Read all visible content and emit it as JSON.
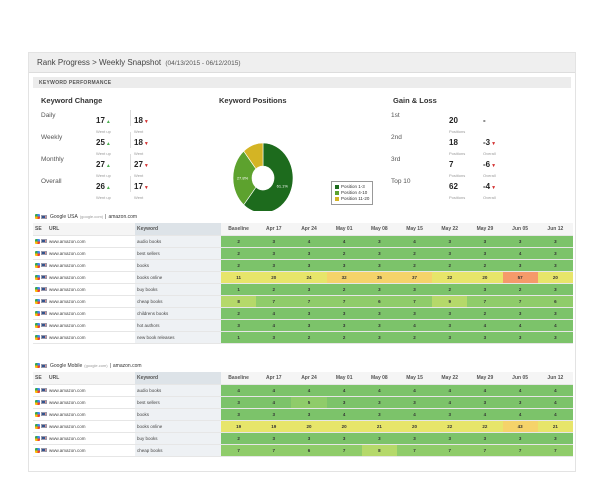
{
  "header": {
    "title": "Rank Progress > Weekly Snapshot",
    "dates": "(04/13/2015 - 06/12/2015)"
  },
  "section_label": "KEYWORD PERFORMANCE",
  "keyword_change": {
    "title": "Keyword Change",
    "rows": [
      {
        "label": "Daily",
        "up": "17",
        "up_sub": "Went up",
        "down": "18",
        "down_sub": "Went"
      },
      {
        "label": "Weekly",
        "up": "25",
        "up_sub": "Went up",
        "down": "18",
        "down_sub": "Went"
      },
      {
        "label": "Monthly",
        "up": "27",
        "up_sub": "Went up",
        "down": "27",
        "down_sub": "Went"
      },
      {
        "label": "Overall",
        "up": "26",
        "up_sub": "Went up",
        "down": "17",
        "down_sub": "Went"
      }
    ]
  },
  "keyword_positions": {
    "title": "Keyword Positions",
    "chart_data": {
      "type": "pie",
      "title": "Keyword Positions",
      "categories": [
        "Position 1-3",
        "Position 4-10",
        "Position 11-20"
      ],
      "values": [
        61.1,
        27.8,
        11.1
      ],
      "labels": [
        "61.1%",
        "27.8%",
        ""
      ],
      "colors": [
        "#1d6b1d",
        "#5da22e",
        "#d4b424"
      ],
      "legend_position": "right"
    }
  },
  "gain_loss": {
    "title": "Gain & Loss",
    "rows": [
      {
        "label": "1st",
        "val": "20",
        "sub": "Positions",
        "change": "-",
        "change_sub": ""
      },
      {
        "label": "2nd",
        "val": "18",
        "sub": "Positions",
        "change": "-3",
        "change_sub": "Overall"
      },
      {
        "label": "3rd",
        "val": "7",
        "sub": "Positions",
        "change": "-6",
        "change_sub": "Overall"
      },
      {
        "label": "Top 10",
        "val": "62",
        "sub": "Positions",
        "change": "-4",
        "change_sub": "Overall"
      }
    ]
  },
  "columns": {
    "se": "SE",
    "url": "URL",
    "keyword": "Keyword",
    "dates": [
      "Baseline",
      "Apr 17",
      "Apr 24",
      "May 01",
      "May 08",
      "May 15",
      "May 22",
      "May 29",
      "Jun 05",
      "Jun 12"
    ]
  },
  "tables": [
    {
      "site": "Google USA",
      "site_sub": "(google.com)",
      "domain": "amazon.com",
      "rows": [
        {
          "url": "www.amazon.com",
          "keyword": "audio books",
          "values": [
            "2",
            "3",
            "4",
            "4",
            "3",
            "4",
            "3",
            "3",
            "3",
            "3"
          ],
          "colors": [
            "g1",
            "g1",
            "g1",
            "g1",
            "g1",
            "g1",
            "g1",
            "g1",
            "g1",
            "g1"
          ]
        },
        {
          "url": "www.amazon.com",
          "keyword": "best sellers",
          "values": [
            "2",
            "3",
            "3",
            "2",
            "3",
            "2",
            "3",
            "3",
            "4",
            "3"
          ],
          "colors": [
            "g1",
            "g1",
            "g1",
            "g1",
            "g1",
            "g1",
            "g1",
            "g1",
            "g1",
            "g1"
          ]
        },
        {
          "url": "www.amazon.com",
          "keyword": "books",
          "values": [
            "2",
            "3",
            "3",
            "3",
            "3",
            "2",
            "2",
            "2",
            "3",
            "3"
          ],
          "colors": [
            "g1",
            "g1",
            "g1",
            "g1",
            "g1",
            "g1",
            "g1",
            "g1",
            "g1",
            "g1"
          ]
        },
        {
          "url": "www.amazon.com",
          "keyword": "books online",
          "values": [
            "11",
            "20",
            "24",
            "32",
            "35",
            "37",
            "22",
            "20",
            "57",
            "20"
          ],
          "colors": [
            "y1",
            "y1",
            "y1",
            "y2",
            "y2",
            "y2",
            "y1",
            "y1",
            "o1",
            "y1"
          ]
        },
        {
          "url": "www.amazon.com",
          "keyword": "buy books",
          "values": [
            "1",
            "2",
            "3",
            "2",
            "3",
            "3",
            "2",
            "3",
            "2",
            "3"
          ],
          "colors": [
            "g1",
            "g1",
            "g1",
            "g1",
            "g1",
            "g1",
            "g1",
            "g1",
            "g1",
            "g1"
          ]
        },
        {
          "url": "www.amazon.com",
          "keyword": "cheap books",
          "values": [
            "8",
            "7",
            "7",
            "7",
            "6",
            "7",
            "9",
            "7",
            "7",
            "6"
          ],
          "colors": [
            "g3",
            "g2",
            "g2",
            "g2",
            "g2",
            "g2",
            "g3",
            "g2",
            "g2",
            "g2"
          ]
        },
        {
          "url": "www.amazon.com",
          "keyword": "childrens books",
          "values": [
            "2",
            "4",
            "3",
            "3",
            "3",
            "3",
            "3",
            "2",
            "3",
            "3"
          ],
          "colors": [
            "g1",
            "g1",
            "g1",
            "g1",
            "g1",
            "g1",
            "g1",
            "g1",
            "g1",
            "g1"
          ]
        },
        {
          "url": "www.amazon.com",
          "keyword": "hot authors",
          "values": [
            "3",
            "4",
            "3",
            "3",
            "3",
            "4",
            "3",
            "4",
            "4",
            "4"
          ],
          "colors": [
            "g1",
            "g1",
            "g1",
            "g1",
            "g1",
            "g1",
            "g1",
            "g1",
            "g1",
            "g1"
          ]
        },
        {
          "url": "www.amazon.com",
          "keyword": "new book releases",
          "values": [
            "1",
            "3",
            "2",
            "2",
            "3",
            "2",
            "3",
            "3",
            "3",
            "3"
          ],
          "colors": [
            "g1",
            "g1",
            "g1",
            "g1",
            "g1",
            "g1",
            "g1",
            "g1",
            "g1",
            "g1"
          ]
        }
      ]
    },
    {
      "site": "Google Mobile",
      "site_sub": "(google.com)",
      "domain": "amazon.com",
      "rows": [
        {
          "url": "www.amazon.com",
          "keyword": "audio books",
          "values": [
            "4",
            "4",
            "4",
            "4",
            "4",
            "4",
            "4",
            "4",
            "4",
            "4"
          ],
          "colors": [
            "g1",
            "g1",
            "g1",
            "g1",
            "g1",
            "g1",
            "g1",
            "g1",
            "g1",
            "g1"
          ]
        },
        {
          "url": "www.amazon.com",
          "keyword": "best sellers",
          "values": [
            "3",
            "4",
            "5",
            "3",
            "3",
            "3",
            "4",
            "3",
            "3",
            "4"
          ],
          "colors": [
            "g1",
            "g1",
            "g2",
            "g1",
            "g1",
            "g1",
            "g1",
            "g1",
            "g1",
            "g1"
          ]
        },
        {
          "url": "www.amazon.com",
          "keyword": "books",
          "values": [
            "3",
            "3",
            "3",
            "4",
            "3",
            "4",
            "3",
            "4",
            "4",
            "4"
          ],
          "colors": [
            "g1",
            "g1",
            "g1",
            "g1",
            "g1",
            "g1",
            "g1",
            "g1",
            "g1",
            "g1"
          ]
        },
        {
          "url": "www.amazon.com",
          "keyword": "books online",
          "values": [
            "19",
            "19",
            "20",
            "20",
            "21",
            "20",
            "22",
            "22",
            "43",
            "21"
          ],
          "colors": [
            "y1",
            "y1",
            "y1",
            "y1",
            "y1",
            "y1",
            "y1",
            "y1",
            "y2",
            "y1"
          ]
        },
        {
          "url": "www.amazon.com",
          "keyword": "buy books",
          "values": [
            "2",
            "3",
            "3",
            "3",
            "3",
            "3",
            "3",
            "3",
            "3",
            "3"
          ],
          "colors": [
            "g1",
            "g1",
            "g1",
            "g1",
            "g1",
            "g1",
            "g1",
            "g1",
            "g1",
            "g1"
          ]
        },
        {
          "url": "www.amazon.com",
          "keyword": "cheap books",
          "values": [
            "7",
            "7",
            "6",
            "7",
            "8",
            "7",
            "7",
            "7",
            "7",
            "7"
          ],
          "colors": [
            "g2",
            "g2",
            "g2",
            "g2",
            "g3",
            "g2",
            "g2",
            "g2",
            "g2",
            "g2"
          ]
        }
      ]
    }
  ]
}
